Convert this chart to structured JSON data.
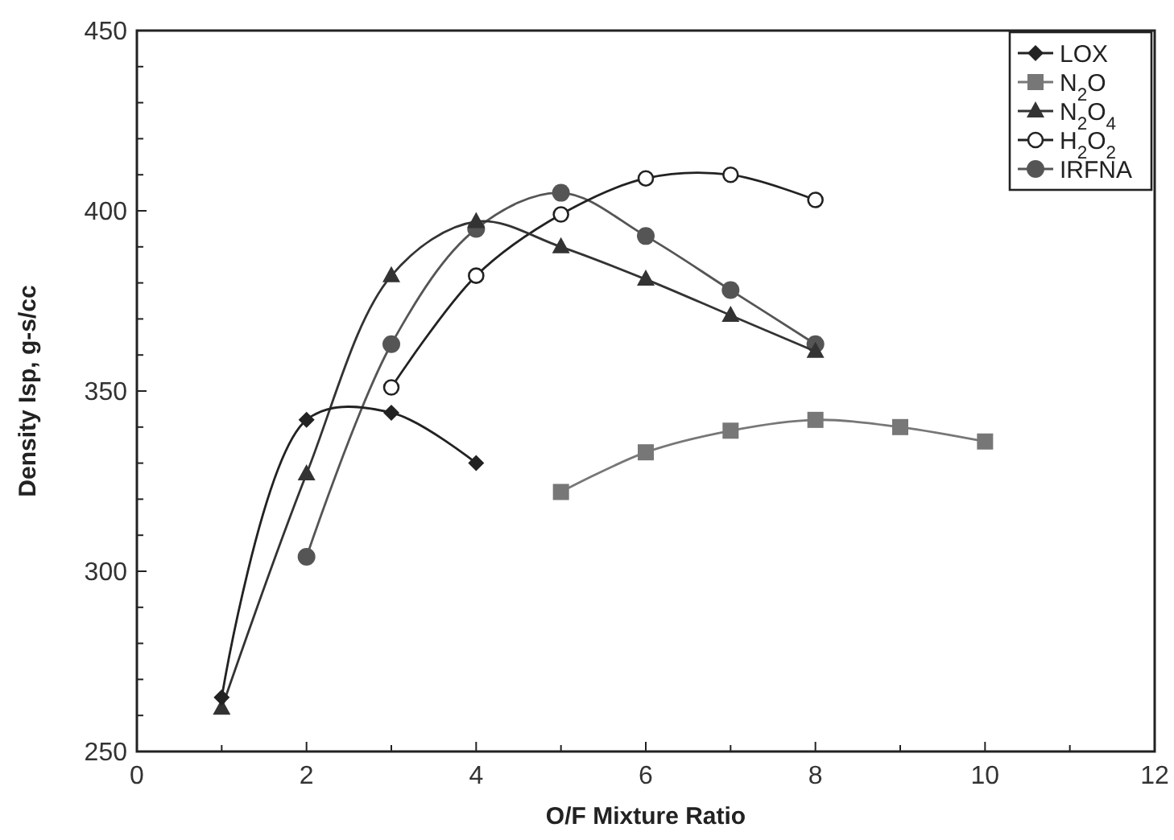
{
  "chart_data": {
    "type": "line",
    "xlabel": "O/F Mixture Ratio",
    "ylabel": "Density Isp, g-s/cc",
    "xlim": [
      0,
      12
    ],
    "ylim": [
      250,
      450
    ],
    "xticks": [
      0,
      {
        "value": 1,
        "label": null
      },
      2,
      {
        "value": 3,
        "label": null
      },
      4,
      {
        "value": 5,
        "label": null
      },
      6,
      {
        "value": 7,
        "label": null
      },
      8,
      {
        "value": 9,
        "label": null
      },
      10,
      {
        "value": 11,
        "label": null
      },
      12
    ],
    "yticks": [
      250,
      {
        "value": 260,
        "label": null
      },
      {
        "value": 270,
        "label": null
      },
      {
        "value": 280,
        "label": null
      },
      {
        "value": 290,
        "label": null
      },
      300,
      {
        "value": 310,
        "label": null
      },
      {
        "value": 320,
        "label": null
      },
      {
        "value": 330,
        "label": null
      },
      {
        "value": 340,
        "label": null
      },
      350,
      {
        "value": 360,
        "label": null
      },
      {
        "value": 370,
        "label": null
      },
      {
        "value": 380,
        "label": null
      },
      {
        "value": 390,
        "label": null
      },
      400,
      {
        "value": 410,
        "label": null
      },
      {
        "value": 420,
        "label": null
      },
      {
        "value": 430,
        "label": null
      },
      {
        "value": 440,
        "label": null
      },
      450
    ],
    "grid": false,
    "legend": "top right",
    "line_style": "solid",
    "series": [
      {
        "name": "LOX",
        "color": "#222222",
        "marker": "diamond",
        "x": [
          1,
          2,
          3,
          4
        ],
        "values": [
          265,
          342,
          344,
          330
        ]
      },
      {
        "name": "N$_{2}$O",
        "color": "#777777",
        "marker": "square",
        "x": [
          5,
          6,
          7,
          8,
          9,
          10
        ],
        "values": [
          322,
          333,
          339,
          342,
          340,
          336
        ]
      },
      {
        "name": "N$_{2}$O$_{4}$",
        "color": "#333333",
        "marker": "triangle",
        "x": [
          1,
          2,
          3,
          4,
          5,
          6,
          7,
          8
        ],
        "values": [
          262,
          327,
          382,
          397,
          390,
          381,
          371,
          361
        ]
      },
      {
        "name": "H$_{2}$O$_{2}$",
        "color": "#222222",
        "marker": "circle-open",
        "x": [
          3,
          4,
          5,
          6,
          7,
          8
        ],
        "values": [
          351,
          382,
          399,
          409,
          410,
          403
        ]
      },
      {
        "name": "IRFNA",
        "color": "#555555",
        "marker": "circle",
        "x": [
          2,
          3,
          4,
          5,
          6,
          7,
          8
        ],
        "values": [
          304,
          363,
          395,
          405,
          393,
          378,
          363
        ]
      }
    ]
  }
}
